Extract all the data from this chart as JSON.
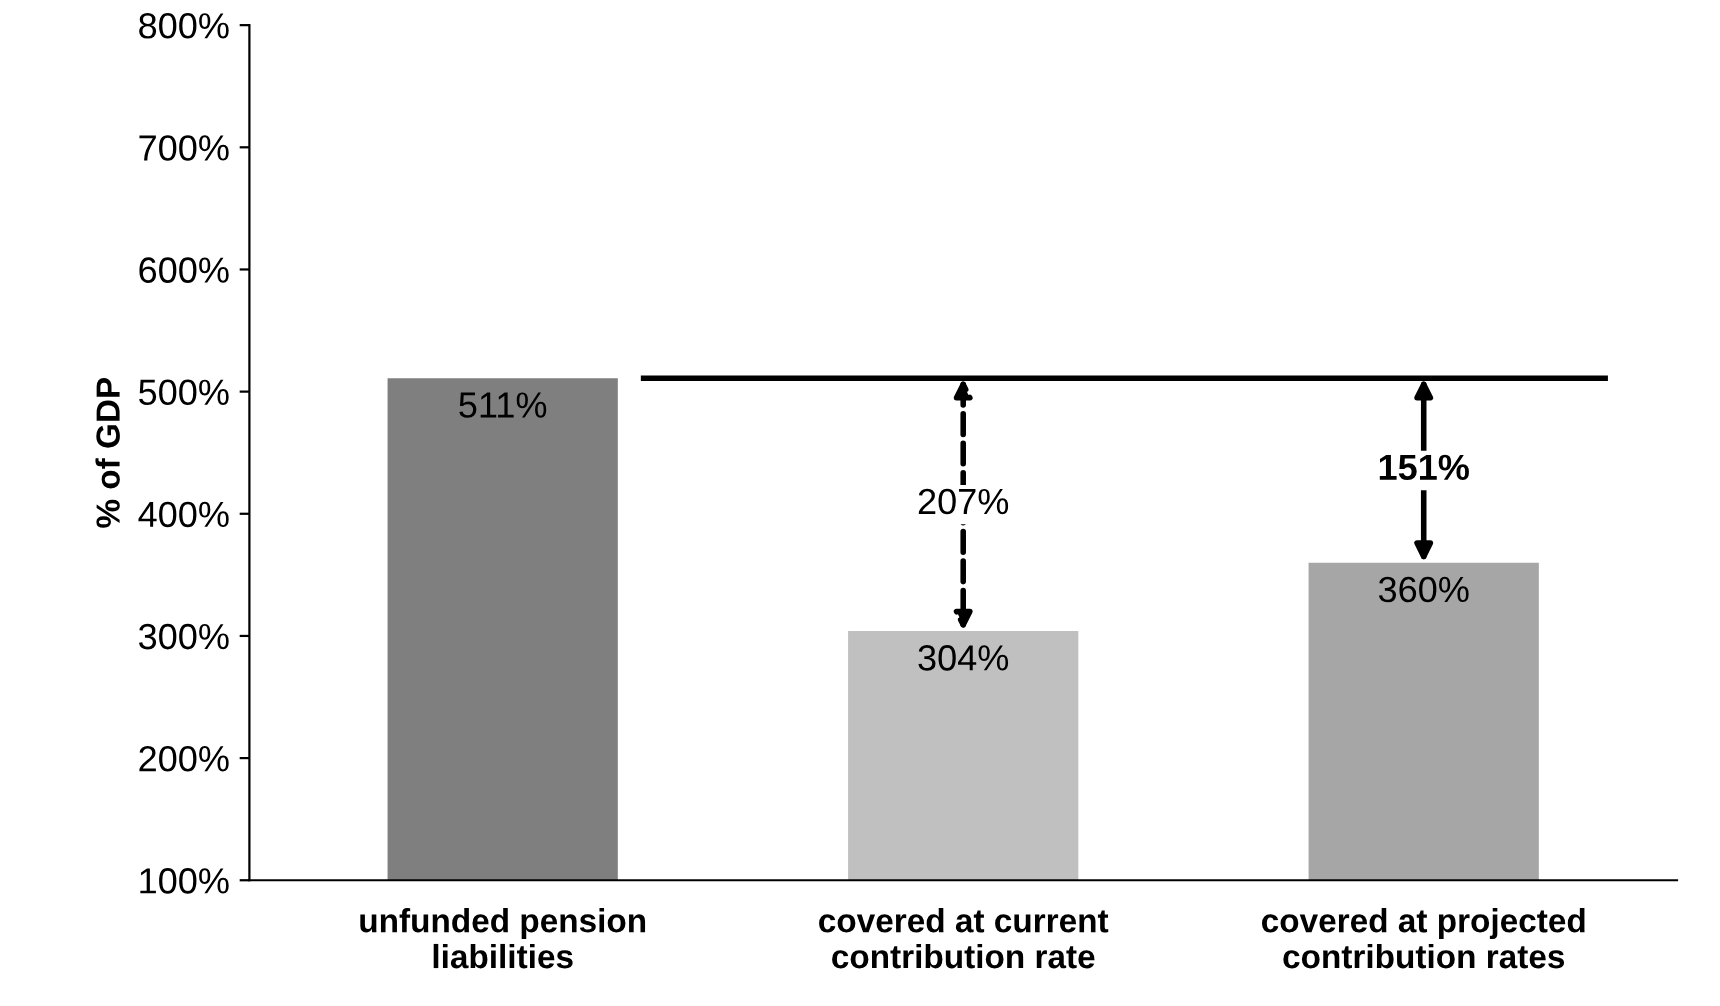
{
  "chart_data": {
    "type": "bar",
    "ylabel": "% of GDP",
    "categories": [
      "unfunded pension\nliabilities",
      "covered at current\ncontribution rate",
      "covered at projected\ncontribution rates"
    ],
    "values": [
      511,
      304,
      360
    ],
    "colors": [
      "#7f7f7f",
      "#c0c0c0",
      "#a6a6a6"
    ],
    "value_labels": [
      "511%",
      "304%",
      "360%"
    ],
    "ylim": [
      100,
      800
    ],
    "yticks": [
      {
        "value": 100,
        "label": "100%"
      },
      {
        "value": 200,
        "label": "200%"
      },
      {
        "value": 300,
        "label": "300%"
      },
      {
        "value": 400,
        "label": "400%"
      },
      {
        "value": 500,
        "label": "500%"
      },
      {
        "value": 600,
        "label": "600%"
      },
      {
        "value": 700,
        "label": "700%"
      },
      {
        "value": 800,
        "label": "800%"
      }
    ],
    "ref_lines": [
      {
        "axis": "y",
        "value": 511,
        "color": "#000000",
        "line_style": "solid"
      }
    ],
    "annotations": [
      "207%",
      "151%"
    ],
    "grid": false,
    "legend": false
  }
}
